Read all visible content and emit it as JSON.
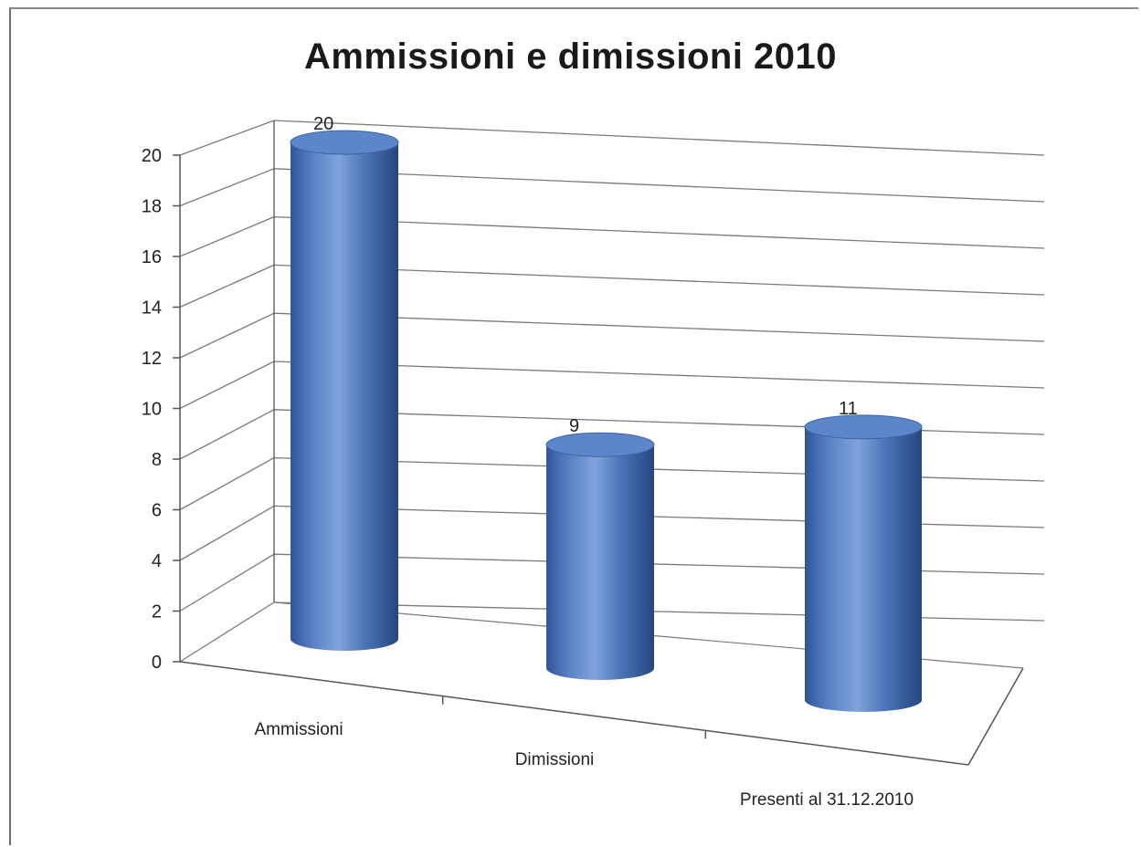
{
  "chart_data": {
    "type": "bar",
    "style": "3d-cylinder",
    "title": "Ammissioni e dimissioni 2010",
    "categories": [
      "Ammissioni",
      "Dimissioni",
      "Presenti al 31.12.2010"
    ],
    "values": [
      20,
      9,
      11
    ],
    "data_labels": [
      "20",
      "9",
      "11"
    ],
    "y_ticks": [
      "0",
      "2",
      "4",
      "6",
      "8",
      "10",
      "12",
      "14",
      "16",
      "18",
      "20"
    ],
    "ylim": [
      0,
      20
    ],
    "xlabel": "",
    "ylabel": "",
    "grid": true,
    "legend": false,
    "colors": {
      "bar": "#4f78be",
      "bar_dark": "#2a4c8c",
      "bar_light": "#8fb0e2",
      "top": "#5c86c8",
      "grid": "#7a7a7a",
      "axis": "#555555"
    }
  }
}
